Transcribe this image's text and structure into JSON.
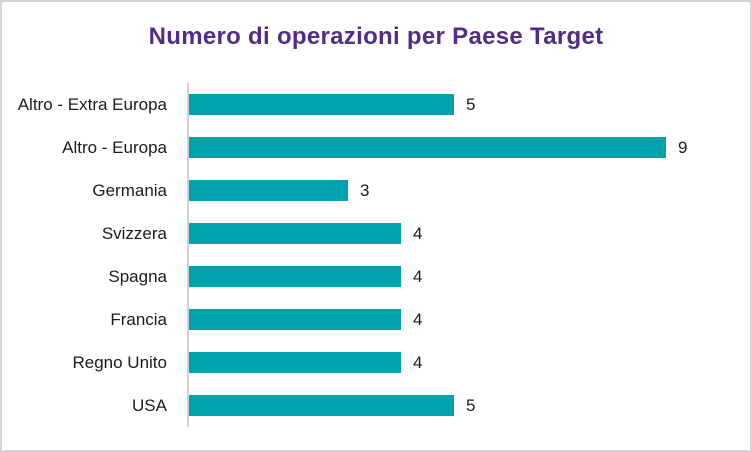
{
  "chart_data": {
    "type": "bar",
    "orientation": "horizontal",
    "title": "Numero di operazioni per Paese Target",
    "categories": [
      "Altro - Extra Europa",
      "Altro - Europa",
      "Germania",
      "Svizzera",
      "Spagna",
      "Francia",
      "Regno Unito",
      "USA"
    ],
    "values": [
      5,
      9,
      3,
      4,
      4,
      4,
      4,
      5
    ],
    "value_labels_shown": true,
    "xlabel": "",
    "ylabel": "",
    "xlim": [
      0,
      10
    ],
    "gridlines": false,
    "legend_position": "none",
    "bar_color": "#00a3ac",
    "title_color": "#512d86",
    "label_color": "#1b1b1b",
    "axis_line_color": "#d0d0d0",
    "card_border_color": "#d5d5d5"
  }
}
